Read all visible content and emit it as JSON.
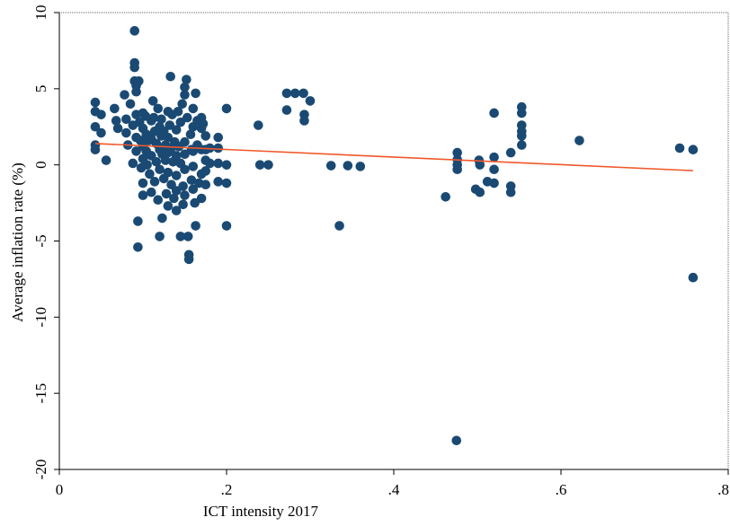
{
  "chart_data": {
    "type": "scatter",
    "title": "",
    "xlabel": "ICT intensity 2017",
    "ylabel": "Average inflation rate (%)",
    "xlim": [
      0,
      0.8
    ],
    "ylim": [
      -20,
      10
    ],
    "x_ticks": [
      0,
      0.2,
      0.4,
      0.6,
      0.8
    ],
    "x_tick_labels": [
      "0",
      ".2",
      ".4",
      ".6",
      ".8"
    ],
    "y_ticks": [
      -20,
      -15,
      -10,
      -5,
      0,
      5,
      10
    ],
    "y_tick_labels": [
      "-20",
      "-15",
      "-10",
      "-5",
      "0",
      "5",
      "10"
    ],
    "grid": false,
    "legend": "none",
    "colors": {
      "points": "#1a4a73",
      "fit_line": "#f0582a"
    },
    "fit_line": {
      "x": [
        0.043,
        0.758
      ],
      "y": [
        1.4,
        -0.38
      ]
    },
    "points": [
      [
        0.043,
        4.1
      ],
      [
        0.043,
        3.5
      ],
      [
        0.043,
        2.5
      ],
      [
        0.043,
        1.3
      ],
      [
        0.043,
        1.0
      ],
      [
        0.05,
        3.3
      ],
      [
        0.05,
        2.1
      ],
      [
        0.056,
        0.3
      ],
      [
        0.066,
        3.7
      ],
      [
        0.068,
        2.9
      ],
      [
        0.07,
        2.4
      ],
      [
        0.078,
        4.6
      ],
      [
        0.08,
        3.0
      ],
      [
        0.08,
        2.1
      ],
      [
        0.082,
        1.3
      ],
      [
        0.085,
        4.0
      ],
      [
        0.088,
        2.6
      ],
      [
        0.088,
        0.1
      ],
      [
        0.09,
        8.8
      ],
      [
        0.09,
        6.7
      ],
      [
        0.09,
        6.4
      ],
      [
        0.09,
        5.5
      ],
      [
        0.092,
        5.2
      ],
      [
        0.092,
        4.8
      ],
      [
        0.092,
        3.3
      ],
      [
        0.092,
        1.8
      ],
      [
        0.092,
        0.9
      ],
      [
        0.094,
        -3.7
      ],
      [
        0.094,
        -5.4
      ],
      [
        0.095,
        5.5
      ],
      [
        0.096,
        2.8
      ],
      [
        0.097,
        1.6
      ],
      [
        0.098,
        -0.2
      ],
      [
        0.1,
        3.4
      ],
      [
        0.1,
        2.4
      ],
      [
        0.1,
        1.2
      ],
      [
        0.1,
        0.4
      ],
      [
        0.1,
        -1.2
      ],
      [
        0.1,
        -2.0
      ],
      [
        0.103,
        3.2
      ],
      [
        0.104,
        2.0
      ],
      [
        0.104,
        0.9
      ],
      [
        0.105,
        0.0
      ],
      [
        0.107,
        1.6
      ],
      [
        0.108,
        -0.6
      ],
      [
        0.11,
        2.9
      ],
      [
        0.11,
        1.7
      ],
      [
        0.11,
        0.6
      ],
      [
        0.11,
        -1.8
      ],
      [
        0.112,
        4.2
      ],
      [
        0.113,
        3.1
      ],
      [
        0.114,
        2.2
      ],
      [
        0.114,
        -1.1
      ],
      [
        0.116,
        1.4
      ],
      [
        0.116,
        0.2
      ],
      [
        0.118,
        3.7
      ],
      [
        0.118,
        -2.3
      ],
      [
        0.12,
        2.5
      ],
      [
        0.12,
        1.0
      ],
      [
        0.12,
        -0.3
      ],
      [
        0.12,
        -4.7
      ],
      [
        0.122,
        3.0
      ],
      [
        0.122,
        1.9
      ],
      [
        0.123,
        0.7
      ],
      [
        0.123,
        -3.5
      ],
      [
        0.125,
        2.2
      ],
      [
        0.125,
        -0.9
      ],
      [
        0.127,
        1.3
      ],
      [
        0.127,
        0.3
      ],
      [
        0.128,
        -1.9
      ],
      [
        0.13,
        3.5
      ],
      [
        0.13,
        1.8
      ],
      [
        0.13,
        0.8
      ],
      [
        0.13,
        -0.5
      ],
      [
        0.13,
        -2.7
      ],
      [
        0.132,
        2.6
      ],
      [
        0.133,
        5.8
      ],
      [
        0.134,
        1.1
      ],
      [
        0.134,
        -1.3
      ],
      [
        0.135,
        3.3
      ],
      [
        0.136,
        0.2
      ],
      [
        0.137,
        -2.2
      ],
      [
        0.138,
        1.5
      ],
      [
        0.14,
        2.3
      ],
      [
        0.14,
        0.6
      ],
      [
        0.14,
        -0.7
      ],
      [
        0.14,
        -1.7
      ],
      [
        0.14,
        -3.0
      ],
      [
        0.142,
        3.5
      ],
      [
        0.143,
        1.2
      ],
      [
        0.145,
        2.8
      ],
      [
        0.145,
        0.1
      ],
      [
        0.145,
        -4.7
      ],
      [
        0.147,
        4.0
      ],
      [
        0.148,
        -1.4
      ],
      [
        0.148,
        -2.6
      ],
      [
        0.15,
        4.6
      ],
      [
        0.15,
        5.1
      ],
      [
        0.15,
        1.5
      ],
      [
        0.15,
        0.7
      ],
      [
        0.15,
        -0.3
      ],
      [
        0.15,
        -2.0
      ],
      [
        0.152,
        5.6
      ],
      [
        0.153,
        3.1
      ],
      [
        0.154,
        -4.7
      ],
      [
        0.155,
        -5.9
      ],
      [
        0.155,
        -6.2
      ],
      [
        0.157,
        2.0
      ],
      [
        0.158,
        1.0
      ],
      [
        0.158,
        -1.0
      ],
      [
        0.16,
        3.7
      ],
      [
        0.16,
        2.5
      ],
      [
        0.16,
        0.9
      ],
      [
        0.16,
        -0.1
      ],
      [
        0.16,
        -1.6
      ],
      [
        0.162,
        -2.5
      ],
      [
        0.163,
        4.7
      ],
      [
        0.163,
        -4.0
      ],
      [
        0.165,
        2.9
      ],
      [
        0.165,
        1.3
      ],
      [
        0.167,
        -1.2
      ],
      [
        0.17,
        3.1
      ],
      [
        0.17,
        2.4
      ],
      [
        0.17,
        1.0
      ],
      [
        0.17,
        -0.6
      ],
      [
        0.17,
        -2.2
      ],
      [
        0.172,
        2.7
      ],
      [
        0.175,
        1.9
      ],
      [
        0.175,
        1.0
      ],
      [
        0.175,
        0.3
      ],
      [
        0.175,
        -0.4
      ],
      [
        0.175,
        -1.3
      ],
      [
        0.18,
        1.1
      ],
      [
        0.18,
        0.1
      ],
      [
        0.19,
        1.8
      ],
      [
        0.19,
        1.1
      ],
      [
        0.19,
        0.1
      ],
      [
        0.19,
        -1.1
      ],
      [
        0.2,
        3.7
      ],
      [
        0.2,
        0.0
      ],
      [
        0.2,
        -1.2
      ],
      [
        0.2,
        -4.0
      ],
      [
        0.238,
        2.6
      ],
      [
        0.24,
        0.0
      ],
      [
        0.25,
        0.0
      ],
      [
        0.272,
        4.7
      ],
      [
        0.272,
        3.6
      ],
      [
        0.282,
        4.7
      ],
      [
        0.292,
        4.7
      ],
      [
        0.293,
        3.3
      ],
      [
        0.293,
        2.9
      ],
      [
        0.3,
        4.2
      ],
      [
        0.325,
        -0.05
      ],
      [
        0.335,
        -4.0
      ],
      [
        0.345,
        -0.05
      ],
      [
        0.36,
        -0.1
      ],
      [
        0.462,
        -2.1
      ],
      [
        0.475,
        -18.1
      ],
      [
        0.476,
        0.8
      ],
      [
        0.476,
        0.35
      ],
      [
        0.476,
        0.0
      ],
      [
        0.476,
        -0.3
      ],
      [
        0.498,
        -1.6
      ],
      [
        0.502,
        0.3
      ],
      [
        0.503,
        -1.8
      ],
      [
        0.503,
        0.0
      ],
      [
        0.512,
        -1.1
      ],
      [
        0.52,
        3.4
      ],
      [
        0.52,
        0.5
      ],
      [
        0.52,
        -0.3
      ],
      [
        0.52,
        -1.2
      ],
      [
        0.54,
        -1.4
      ],
      [
        0.54,
        -1.8
      ],
      [
        0.54,
        0.8
      ],
      [
        0.553,
        3.8
      ],
      [
        0.553,
        3.4
      ],
      [
        0.553,
        2.6
      ],
      [
        0.553,
        2.2
      ],
      [
        0.553,
        1.9
      ],
      [
        0.553,
        1.3
      ],
      [
        0.622,
        1.6
      ],
      [
        0.742,
        1.1
      ],
      [
        0.758,
        1.0
      ],
      [
        0.758,
        -7.4
      ]
    ]
  }
}
